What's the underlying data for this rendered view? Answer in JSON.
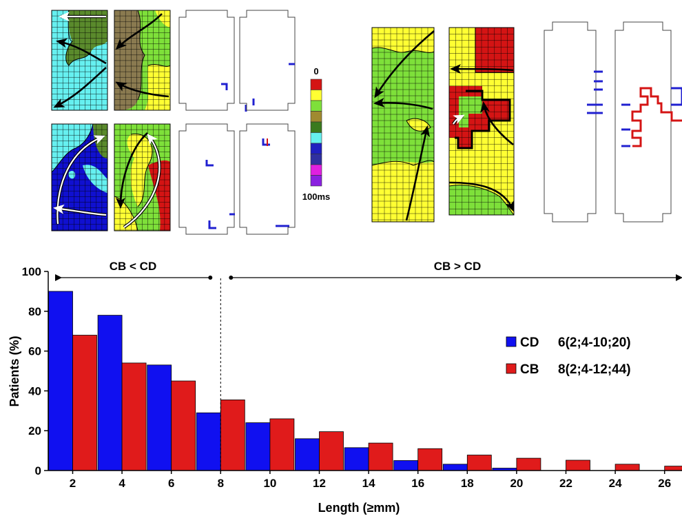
{
  "colors": {
    "cd": "#1010f0",
    "cb": "#e01b1b",
    "map_green": "#7ee03a",
    "map_yellow": "#ffff33",
    "map_cyan": "#66f0f0",
    "map_olive": "#5a8a2c",
    "map_brown": "#8a7a50",
    "map_blue": "#1010d0",
    "map_red": "#d41414"
  },
  "color_scale": {
    "top_label": "0",
    "bottom_label": "100ms",
    "colors": [
      "#d41414",
      "#ffff33",
      "#7ee03a",
      "#a08a30",
      "#3a7a1e",
      "#66f0f0",
      "#2020c0",
      "#3030a0",
      "#e020e0",
      "#8a20e0"
    ]
  },
  "chart_data": {
    "type": "bar",
    "categories": [
      "2",
      "4",
      "6",
      "8",
      "10",
      "12",
      "14",
      "16",
      "18",
      "20",
      "22",
      "24",
      "26"
    ],
    "series": [
      {
        "name": "CD",
        "values": [
          90,
          78,
          53,
          29,
          24,
          16,
          11.5,
          5,
          3.2,
          1.2,
          0,
          0,
          0
        ]
      },
      {
        "name": "CB",
        "values": [
          68,
          54,
          45,
          35.5,
          26,
          19.5,
          13.8,
          11,
          7.8,
          6.2,
          5.2,
          3.2,
          2.2
        ]
      }
    ],
    "xlabel": "Length (≥mm)",
    "ylabel": "Patients (%)",
    "ylim": [
      0,
      100
    ],
    "yticks": [
      "0",
      "20",
      "40",
      "60",
      "80",
      "100"
    ],
    "legend": {
      "placement": "right",
      "entries": [
        {
          "series": "CD",
          "label": "CD",
          "stat": "6(2;4-10;20)"
        },
        {
          "series": "CB",
          "label": "CB",
          "stat": "8(2;4-12;44)"
        }
      ]
    },
    "annotations": {
      "left_label": "CB < CD",
      "right_label": "CB > CD",
      "crossover_x": 8
    },
    "grid": false
  }
}
